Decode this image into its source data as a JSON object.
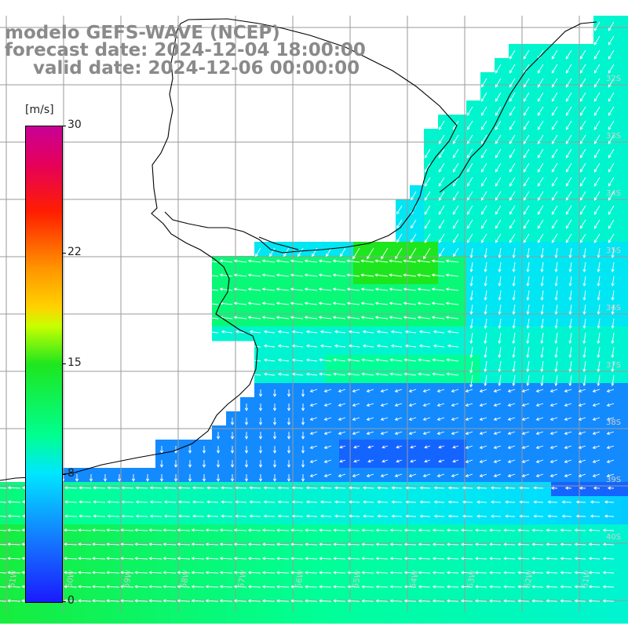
{
  "title": {
    "line1": "modelo GEFS-WAVE (NCEP)",
    "line2": "forecast date: 2024-12-04 18:00:00",
    "line3": "valid date: 2024-12-06 00:00:00"
  },
  "colorbar": {
    "unit": "[m/s]",
    "ticks": [
      {
        "label": "30",
        "value": 30
      },
      {
        "label": "22",
        "value": 22
      },
      {
        "label": "15",
        "value": 15
      },
      {
        "label": "8",
        "value": 8
      },
      {
        "label": "0",
        "value": 0
      }
    ]
  },
  "map": {
    "latitude_labels": [
      "32S",
      "33S",
      "34S",
      "35S",
      "36S",
      "37S",
      "38S",
      "39S",
      "40S"
    ],
    "longitude_labels": [
      "61W",
      "60W",
      "59W",
      "58W",
      "57W",
      "56W",
      "55W",
      "54W",
      "53W",
      "52W",
      "51W"
    ],
    "colors": {
      "land": "#ffffff",
      "grid": "#9a9a9a",
      "coast": "#000000",
      "arrows": "#ffffff",
      "title_text": "#8a8a8a"
    }
  }
}
